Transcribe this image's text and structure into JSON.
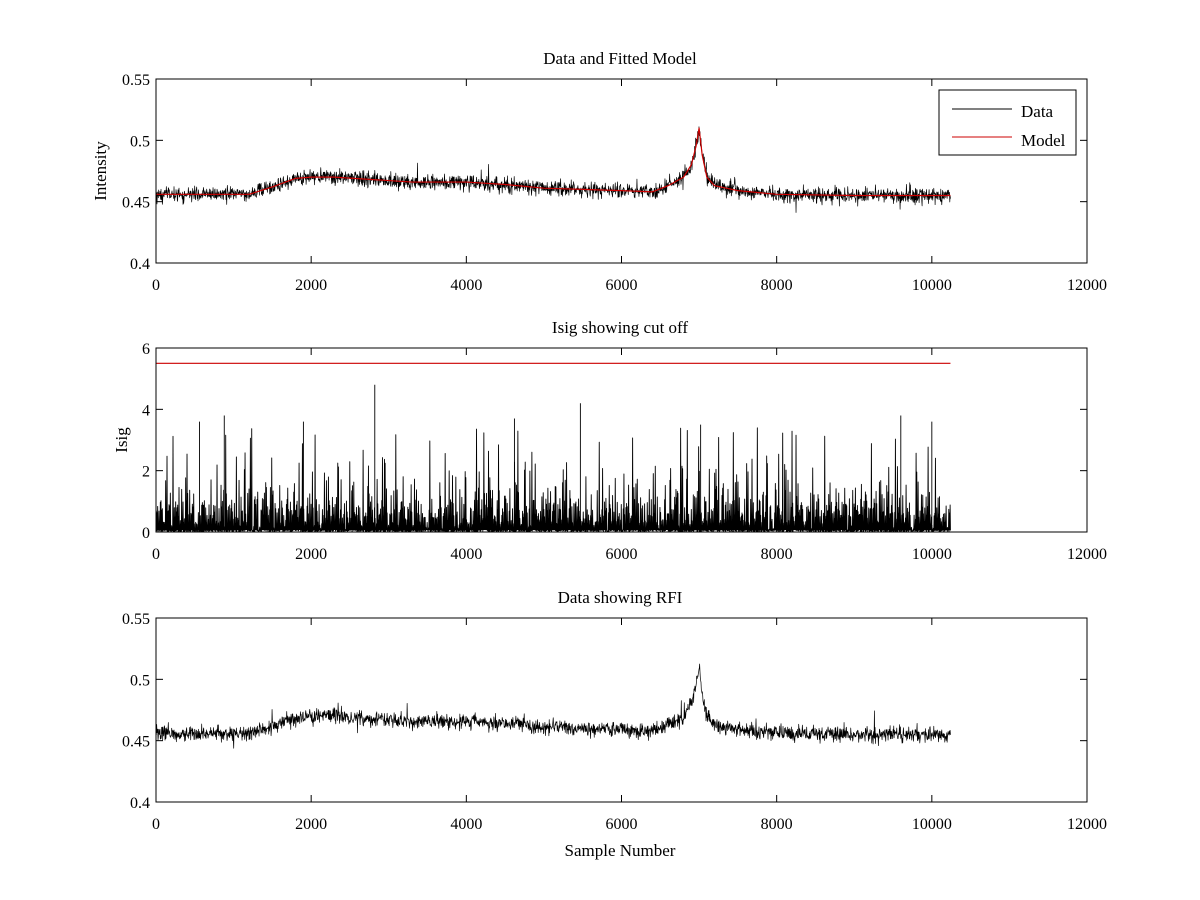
{
  "figure": {
    "background": "#ffffff"
  },
  "chart_data": [
    {
      "type": "line",
      "title": "Data and Fitted Model",
      "xlabel": "",
      "ylabel": "Intensity",
      "xlim": [
        0,
        12000
      ],
      "ylim": [
        0.4,
        0.55
      ],
      "xticks": [
        0,
        2000,
        4000,
        6000,
        8000,
        10000,
        12000
      ],
      "yticks": [
        0.4,
        0.45,
        0.5,
        0.55
      ],
      "ytick_labels": [
        "0.4",
        "0.45",
        "0.5",
        "0.55"
      ],
      "grid": false,
      "legend_position": "top-right",
      "series": [
        {
          "name": "Data",
          "color": "#000000",
          "noise_amplitude": 0.006,
          "x": [
            0,
            1200,
            1500,
            1800,
            2000,
            2300,
            2800,
            3300,
            4000,
            4500,
            5000,
            5500,
            6000,
            6400,
            6600,
            6800,
            6900,
            6960,
            7000,
            7040,
            7100,
            7200,
            7500,
            8000,
            9000,
            10000,
            10240
          ],
          "y": [
            0.456,
            0.456,
            0.462,
            0.469,
            0.47,
            0.47,
            0.468,
            0.466,
            0.466,
            0.464,
            0.461,
            0.46,
            0.459,
            0.458,
            0.463,
            0.47,
            0.48,
            0.495,
            0.51,
            0.488,
            0.47,
            0.463,
            0.459,
            0.456,
            0.455,
            0.455,
            0.455
          ]
        },
        {
          "name": "Model",
          "color": "#cc0000",
          "x": [
            0,
            1200,
            1500,
            1800,
            2000,
            2300,
            2800,
            3300,
            4000,
            4500,
            5000,
            5500,
            6000,
            6400,
            6600,
            6800,
            6900,
            6960,
            7000,
            7040,
            7100,
            7200,
            7500,
            8000,
            9000,
            10000,
            10240
          ],
          "y": [
            0.456,
            0.456,
            0.462,
            0.469,
            0.47,
            0.47,
            0.468,
            0.466,
            0.466,
            0.464,
            0.461,
            0.46,
            0.459,
            0.458,
            0.463,
            0.47,
            0.48,
            0.495,
            0.51,
            0.488,
            0.47,
            0.463,
            0.459,
            0.456,
            0.455,
            0.455,
            0.455
          ]
        }
      ]
    },
    {
      "type": "line",
      "title": "Isig showing cut off",
      "xlabel": "",
      "ylabel": "Isig",
      "xlim": [
        0,
        12000
      ],
      "ylim": [
        0,
        6
      ],
      "xticks": [
        0,
        2000,
        4000,
        6000,
        8000,
        10000,
        12000
      ],
      "yticks": [
        0,
        2,
        4,
        6
      ],
      "ytick_labels": [
        "0",
        "2",
        "4",
        "6"
      ],
      "grid": false,
      "series": [
        {
          "color": "#000000",
          "x_range": [
            0,
            10240
          ],
          "typical_max": 2.6,
          "spikes": [
            [
              560,
              3.6
            ],
            [
              880,
              3.8
            ],
            [
              1900,
              3.6
            ],
            [
              2820,
              4.8
            ],
            [
              4620,
              3.7
            ],
            [
              5470,
              4.2
            ],
            [
              7020,
              3.5
            ],
            [
              9600,
              3.8
            ],
            [
              10000,
              3.6
            ]
          ]
        },
        {
          "color": "#cc0000",
          "x": [
            0,
            10240
          ],
          "y": [
            5.5,
            5.5
          ]
        }
      ]
    },
    {
      "type": "line",
      "title": "Data showing RFI",
      "xlabel": "Sample Number",
      "ylabel": "",
      "xlim": [
        0,
        12000
      ],
      "ylim": [
        0.4,
        0.55
      ],
      "xticks": [
        0,
        2000,
        4000,
        6000,
        8000,
        10000,
        12000
      ],
      "yticks": [
        0.4,
        0.45,
        0.5,
        0.55
      ],
      "ytick_labels": [
        "0.4",
        "0.45",
        "0.5",
        "0.55"
      ],
      "grid": false,
      "series": [
        {
          "color": "#000000",
          "noise_amplitude": 0.006,
          "x": [
            0,
            1200,
            1500,
            1800,
            2000,
            2300,
            2800,
            3300,
            4000,
            4500,
            5000,
            5500,
            6000,
            6400,
            6600,
            6800,
            6900,
            6960,
            7000,
            7040,
            7100,
            7200,
            7500,
            8000,
            9000,
            10000,
            10240
          ],
          "y": [
            0.456,
            0.456,
            0.462,
            0.469,
            0.47,
            0.47,
            0.468,
            0.466,
            0.466,
            0.464,
            0.461,
            0.46,
            0.459,
            0.458,
            0.463,
            0.47,
            0.48,
            0.495,
            0.51,
            0.488,
            0.47,
            0.463,
            0.459,
            0.456,
            0.455,
            0.455,
            0.455
          ]
        }
      ]
    }
  ]
}
